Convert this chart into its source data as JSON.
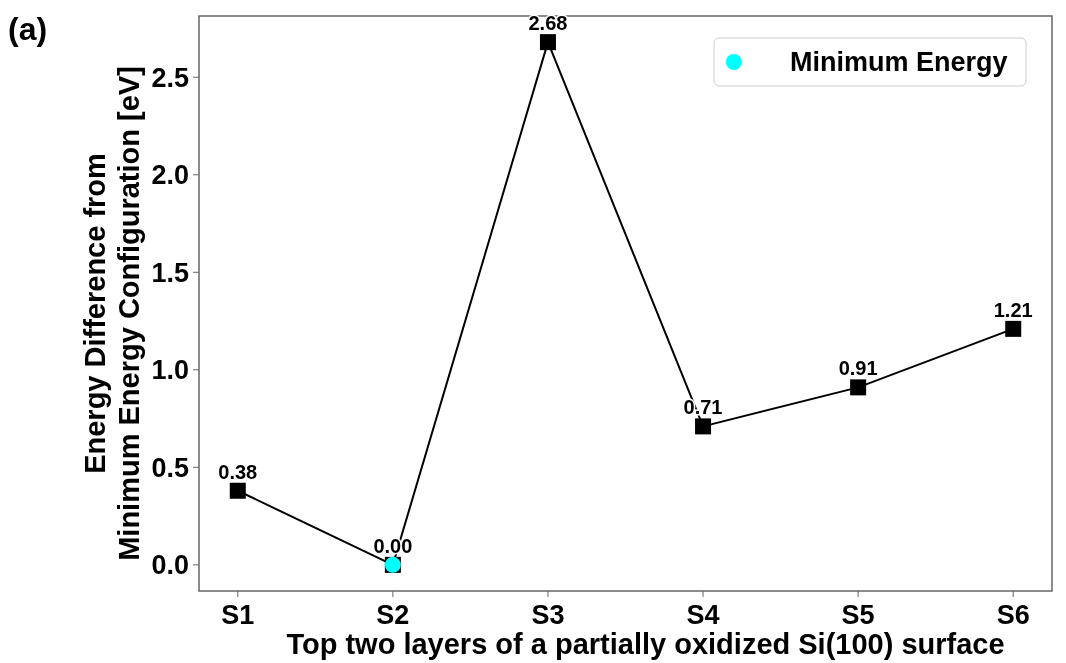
{
  "chart_data": {
    "type": "line",
    "xlabel": "Top two layers of a partially oxidized Si(100) surface",
    "ylabel": "Energy Difference from\nMinimum Energy Configuration [eV]",
    "annotations": [
      "(a)"
    ],
    "categories": [
      "S1",
      "S2",
      "S3",
      "S4",
      "S5",
      "S6"
    ],
    "ylim": [
      -0.134,
      2.814
    ],
    "yticks": [
      {
        "value": 0,
        "label": "0.0"
      },
      {
        "value": 0.5,
        "label": "0.5"
      },
      {
        "value": 1,
        "label": "1.0"
      },
      {
        "value": 1.5,
        "label": "1.5"
      },
      {
        "value": 2,
        "label": "2.0"
      },
      {
        "value": 2.5,
        "label": "2.5"
      }
    ],
    "grid": false,
    "legend": "top right",
    "series": [
      {
        "color": "#000000",
        "marker": "square",
        "values": [
          0.38,
          0,
          2.68,
          0.71,
          0.91,
          1.21
        ],
        "value_labels": [
          "0.38",
          "0.00",
          "2.68",
          "0.71",
          "0.91",
          "1.21"
        ]
      },
      {
        "type": "scatter",
        "name": "Minimum Energy",
        "color": "#00ffff",
        "marker": "circle",
        "x": [
          "S2"
        ],
        "values": [
          0
        ]
      }
    ]
  }
}
